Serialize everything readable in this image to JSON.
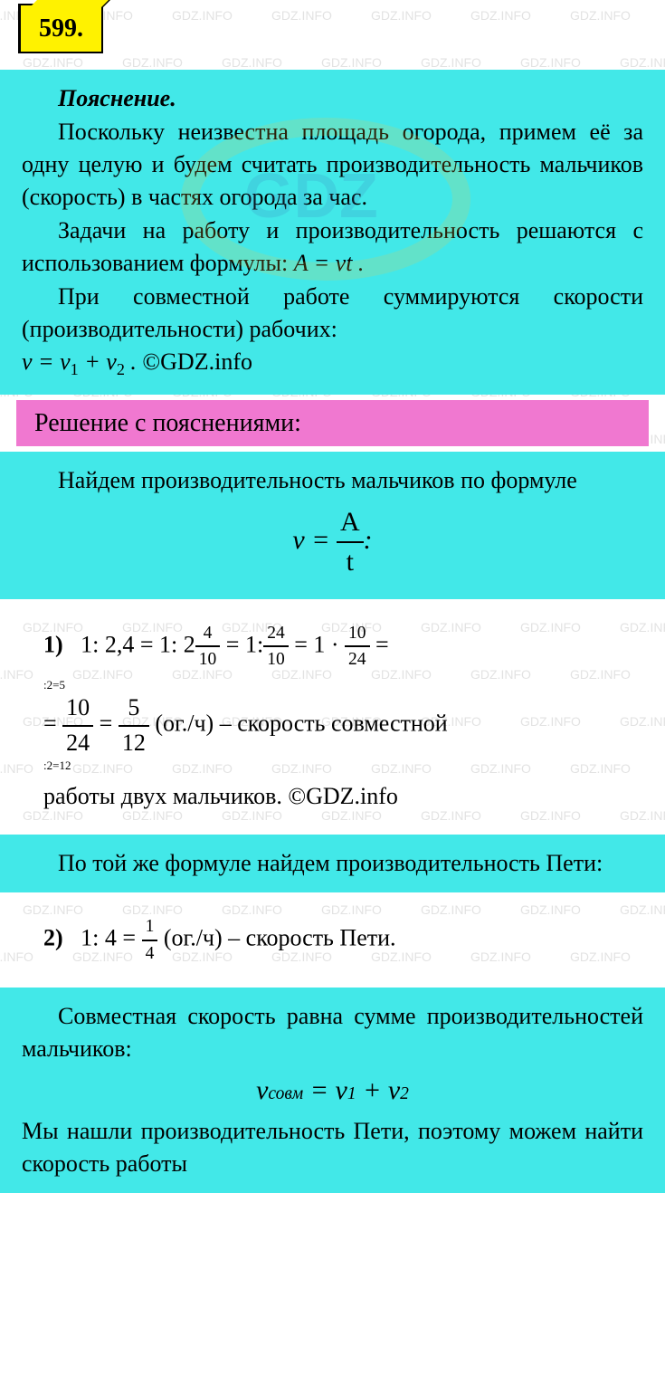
{
  "watermark_text": "GDZ.INFO",
  "watermark_color": "#d0d0d0",
  "badge": {
    "number": "599.",
    "bg": "#fff200",
    "border": "#000000"
  },
  "colors": {
    "cyan": "#42e8e8",
    "pink": "#f078d0",
    "white": "#ffffff",
    "text": "#000000"
  },
  "explanation": {
    "title": "Пояснение.",
    "p1": "Поскольку неизвестна площадь огорода, примем её за одну целую и будем считать производительность мальчиков (скорость) в частях огорода за час.",
    "p2_pre": "Задачи на работу и производительность решаются с использованием формулы:  ",
    "p2_formula": "A = vt .",
    "p3_pre": "При совместной работе суммируются скорости (производительности) рабочих: ",
    "p3_formula_v": "v = v",
    "p3_formula_1": "1",
    "p3_formula_plus": " + v",
    "p3_formula_2": "2",
    "p3_formula_end": " .",
    "copyright": " ©GDZ.info"
  },
  "solution_heading": "Решение с пояснениями:",
  "block1": {
    "text": "Найдем производительность мальчиков по формуле",
    "formula_v": "v",
    "formula_eq": " = ",
    "formula_A": "A",
    "formula_t": "t",
    "formula_colon": ":"
  },
  "step1": {
    "label": "1)",
    "line1_a": "1: 2,4  =  1: 2",
    "line1_f1n": "4",
    "line1_f1d": "10",
    "line1_b": " = 1:",
    "line1_f2n": "24",
    "line1_f2d": "10",
    "line1_c": " = 1 · ",
    "line1_f3n": "10",
    "line1_f3d": "24",
    "line1_d": " =",
    "line2_note_top": ":2=5",
    "line2_eq": "= ",
    "line2_f1n": "10",
    "line2_f1d": "24",
    "line2_mid": " = ",
    "line2_f2n": "5",
    "line2_f2d": "12",
    "line2_note_bot": ":2=12",
    "line2_text": "  (ог./ч)  –  скорость  совместной",
    "line3": "работы двух мальчиков. ©GDZ.info"
  },
  "block2": {
    "text": "По той же формуле найдем производительность Пети:"
  },
  "step2": {
    "label": "2)",
    "text_a": "1: 4  =  ",
    "fn": "1",
    "fd": "4",
    "text_b": " (ог./ч) – скорость Пети."
  },
  "block3": {
    "p1": "Совместная скорость равна сумме производительностей мальчиков:",
    "formula_v": "v",
    "formula_sub": "совм",
    "formula_eq": " = v",
    "formula_1": "1",
    "formula_plus": " + v",
    "formula_2": "2",
    "p2": "Мы нашли производительность Пети, поэтому можем найти скорость работы"
  },
  "typography": {
    "body_fontsize": 26,
    "heading_fontsize": 28,
    "formula_fontsize": 30
  }
}
